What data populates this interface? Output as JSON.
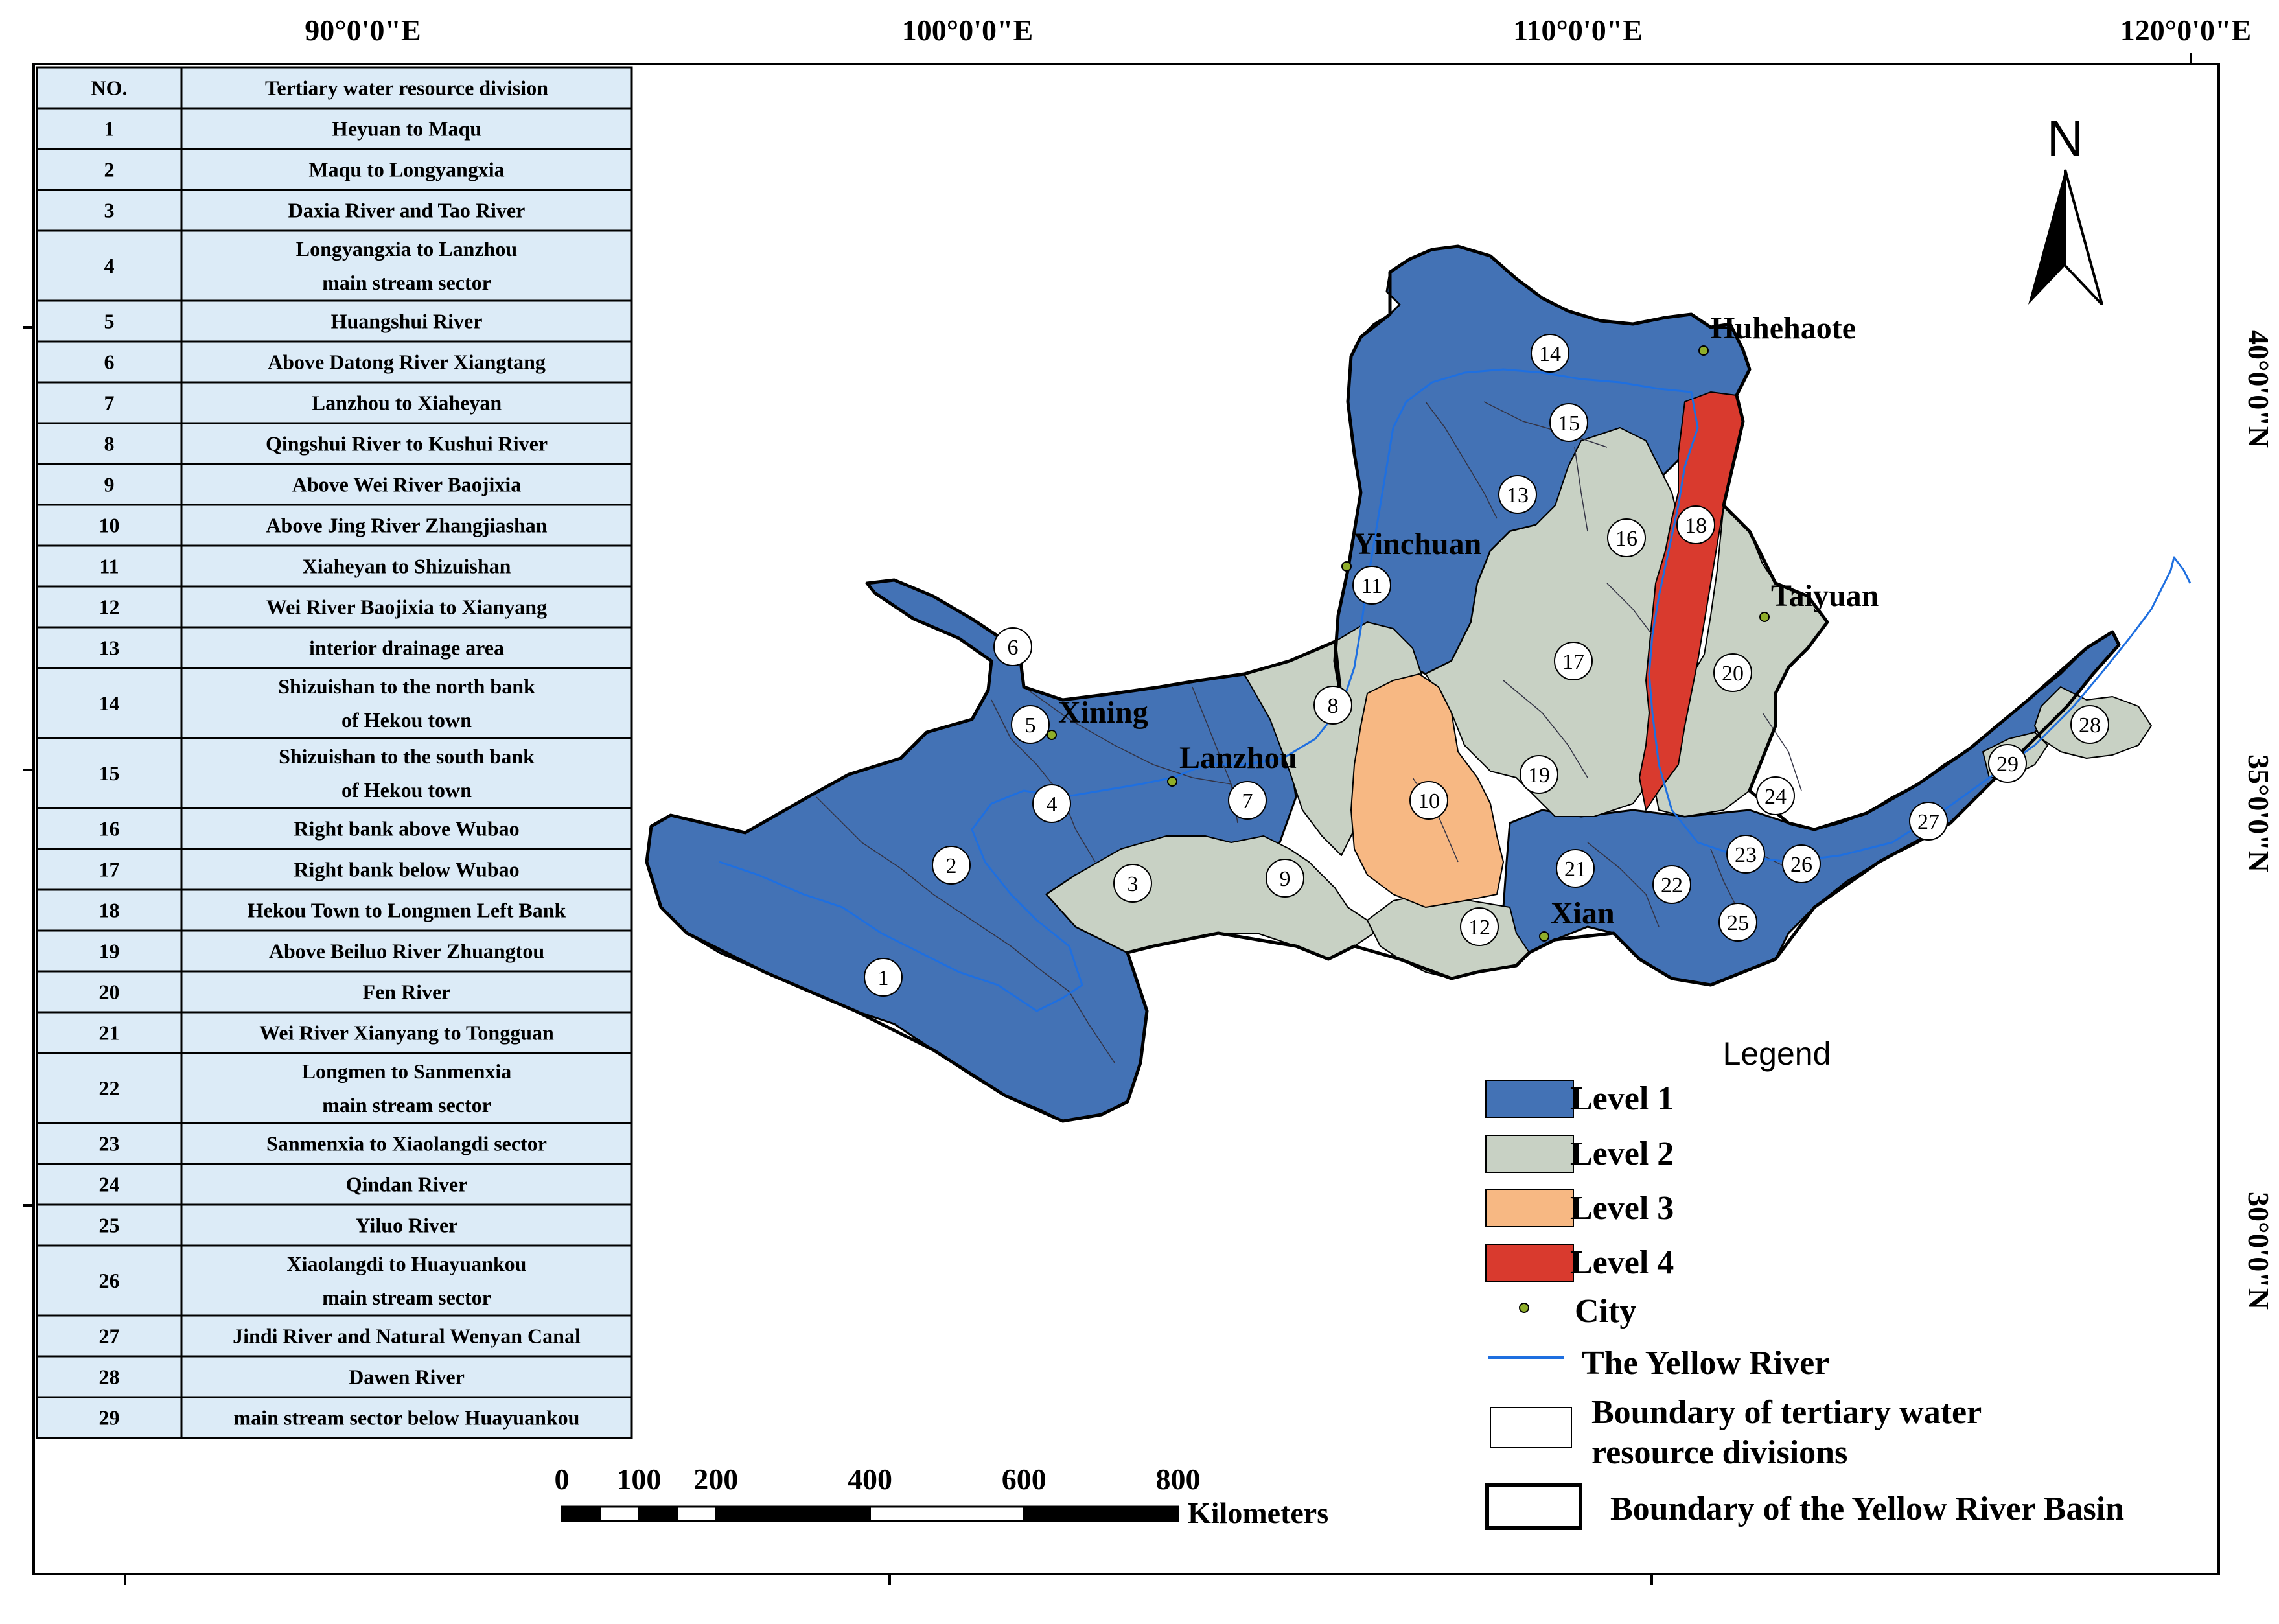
{
  "table": {
    "header": {
      "no": "NO.",
      "division": "Tertiary water resource division"
    },
    "rows": [
      {
        "no": "1",
        "lines": [
          "Heyuan to Maqu"
        ]
      },
      {
        "no": "2",
        "lines": [
          "Maqu to Longyangxia"
        ]
      },
      {
        "no": "3",
        "lines": [
          "Daxia River and Tao River"
        ]
      },
      {
        "no": "4",
        "lines": [
          "Longyangxia to Lanzhou",
          "main stream sector"
        ]
      },
      {
        "no": "5",
        "lines": [
          "Huangshui River"
        ]
      },
      {
        "no": "6",
        "lines": [
          "Above Datong River Xiangtang"
        ]
      },
      {
        "no": "7",
        "lines": [
          "Lanzhou to Xiaheyan"
        ]
      },
      {
        "no": "8",
        "lines": [
          "Qingshui River to Kushui River"
        ]
      },
      {
        "no": "9",
        "lines": [
          "Above Wei River Baojixia"
        ]
      },
      {
        "no": "10",
        "lines": [
          "Above Jing River Zhangjiashan"
        ]
      },
      {
        "no": "11",
        "lines": [
          "Xiaheyan to Shizuishan"
        ]
      },
      {
        "no": "12",
        "lines": [
          "Wei River Baojixia to Xianyang"
        ]
      },
      {
        "no": "13",
        "lines": [
          "interior drainage area"
        ]
      },
      {
        "no": "14",
        "lines": [
          "Shizuishan to the north bank",
          "of Hekou town"
        ]
      },
      {
        "no": "15",
        "lines": [
          "Shizuishan to the south bank",
          "of Hekou town"
        ]
      },
      {
        "no": "16",
        "lines": [
          "Right bank above Wubao"
        ]
      },
      {
        "no": "17",
        "lines": [
          "Right bank below Wubao"
        ]
      },
      {
        "no": "18",
        "lines": [
          "Hekou Town to Longmen Left Bank"
        ]
      },
      {
        "no": "19",
        "lines": [
          "Above Beiluo River Zhuangtou"
        ]
      },
      {
        "no": "20",
        "lines": [
          "Fen River"
        ]
      },
      {
        "no": "21",
        "lines": [
          "Wei River Xianyang to Tongguan"
        ]
      },
      {
        "no": "22",
        "lines": [
          "Longmen to Sanmenxia",
          "main stream sector"
        ]
      },
      {
        "no": "23",
        "lines": [
          "Sanmenxia to Xiaolangdi sector"
        ]
      },
      {
        "no": "24",
        "lines": [
          "Qindan River"
        ]
      },
      {
        "no": "25",
        "lines": [
          "Yiluo River"
        ]
      },
      {
        "no": "26",
        "lines": [
          "Xiaolangdi to Huayuankou",
          "main stream sector"
        ]
      },
      {
        "no": "27",
        "lines": [
          "Jindi River and Natural Wenyan Canal"
        ]
      },
      {
        "no": "28",
        "lines": [
          "Dawen River"
        ]
      },
      {
        "no": "29",
        "lines": [
          "main stream sector below Huayuankou"
        ]
      }
    ]
  },
  "graticule": {
    "longitudes": [
      "90°0'0\"E",
      "100°0'0\"E",
      "110°0'0\"E",
      "120°0'0\"E"
    ],
    "latitudes": [
      "40°0'0\"N",
      "35°0'0\"N",
      "30°0'0\"N"
    ]
  },
  "north_arrow": {
    "label": "N"
  },
  "cities": [
    {
      "name": "Huhehaote"
    },
    {
      "name": "Yinchuan"
    },
    {
      "name": "Taiyuan"
    },
    {
      "name": "Xining"
    },
    {
      "name": "Lanzhou"
    },
    {
      "name": "Xian"
    }
  ],
  "legend": {
    "title": "Legend",
    "items": [
      {
        "label": "Level 1",
        "color": "#4372b5"
      },
      {
        "label": "Level 2",
        "color": "#c8d1c4"
      },
      {
        "label": "Level 3",
        "color": "#f7b883"
      },
      {
        "label": "Level 4",
        "color": "#d93a2e"
      },
      {
        "label": "City"
      },
      {
        "label": "The Yellow River"
      },
      {
        "label": "Boundary of tertiary water resource divisions"
      },
      {
        "label": "Boundary of the Yellow River Basin"
      }
    ],
    "boundary_tertiary_lines": [
      "Boundary of tertiary water",
      "resource divisions"
    ]
  },
  "scale_bar": {
    "ticks": [
      "0",
      "100",
      "200",
      "400",
      "600",
      "800"
    ],
    "unit": "Kilometers"
  },
  "colors": {
    "level1": "#4372b5",
    "level2": "#c8d1c4",
    "level3": "#f7b883",
    "level4": "#d93a2e",
    "river": "#1e6fe0",
    "table_bg": "#dcebf7",
    "city_dot": "#8fae2a"
  },
  "division_levels": {
    "1": 1,
    "2": 1,
    "4": 1,
    "5": 1,
    "6": 1,
    "7": 1,
    "11": 1,
    "13": 1,
    "14": 1,
    "15": 1,
    "21": 1,
    "22": 1,
    "23": 1,
    "25": 1,
    "26": 1,
    "27": 1,
    "3": 2,
    "8": 2,
    "9": 2,
    "12": 2,
    "16": 2,
    "17": 2,
    "19": 2,
    "20": 2,
    "24": 2,
    "28": 2,
    "29": 2,
    "10": 3,
    "18": 4
  }
}
